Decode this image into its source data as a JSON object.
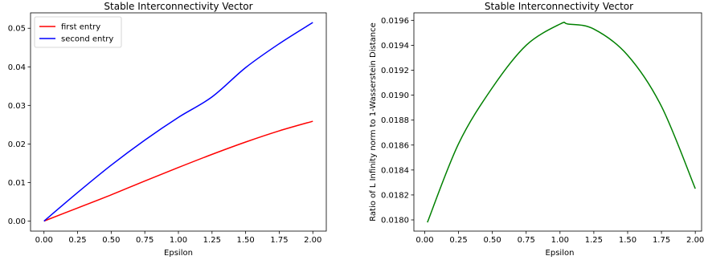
{
  "chart_data": [
    {
      "type": "line",
      "title": "Stable Interconnectivity Vector",
      "xlabel": "Epsilon",
      "ylabel": "",
      "xlim": [
        -0.1,
        2.1
      ],
      "ylim": [
        -0.0026,
        0.054
      ],
      "xticks": [
        "0.00",
        "0.25",
        "0.50",
        "0.75",
        "1.00",
        "1.25",
        "1.50",
        "1.75",
        "2.00"
      ],
      "yticks": [
        "0.00",
        "0.01",
        "0.02",
        "0.03",
        "0.04",
        "0.05"
      ],
      "legend": "top-left",
      "grid": false,
      "series": [
        {
          "name": "first entry",
          "color": "#ff0000",
          "x": [
            0,
            0.25,
            0.5,
            0.75,
            1.0,
            1.25,
            1.5,
            1.75,
            2.0
          ],
          "values": [
            0.0,
            0.0034,
            0.0068,
            0.0104,
            0.0139,
            0.0173,
            0.0205,
            0.0234,
            0.0259
          ]
        },
        {
          "name": "second entry",
          "color": "#0000ff",
          "x": [
            0,
            0.25,
            0.5,
            0.75,
            1.0,
            1.25,
            1.5,
            1.75,
            2.0
          ],
          "values": [
            0.0,
            0.0074,
            0.0145,
            0.021,
            0.0269,
            0.0322,
            0.0398,
            0.046,
            0.0515
          ]
        }
      ]
    },
    {
      "type": "line",
      "title": "Stable Interconnectivity Vector",
      "xlabel": "Epsilon",
      "ylabel": "Ratio of L Infinity norm to 1-Wasserstein Distance",
      "xlim": [
        -0.08,
        2.1
      ],
      "ylim": [
        0.01791,
        0.01966
      ],
      "xticks": [
        "0.00",
        "0.25",
        "0.50",
        "0.75",
        "1.00",
        "1.25",
        "1.50",
        "1.75",
        "2.00"
      ],
      "yticks": [
        "0.0180",
        "0.0182",
        "0.0184",
        "0.0186",
        "0.0188",
        "0.0190",
        "0.0192",
        "0.0194",
        "0.0196"
      ],
      "legend": "none",
      "grid": false,
      "series": [
        {
          "color": "#008000",
          "x": [
            0.02,
            0.25,
            0.5,
            0.75,
            1.0,
            1.06,
            1.25,
            1.5,
            1.75,
            2.0
          ],
          "values": [
            0.01798,
            0.01861,
            0.01906,
            0.0194,
            0.01957,
            0.01957,
            0.01953,
            0.01932,
            0.01891,
            0.01825
          ]
        }
      ]
    }
  ]
}
